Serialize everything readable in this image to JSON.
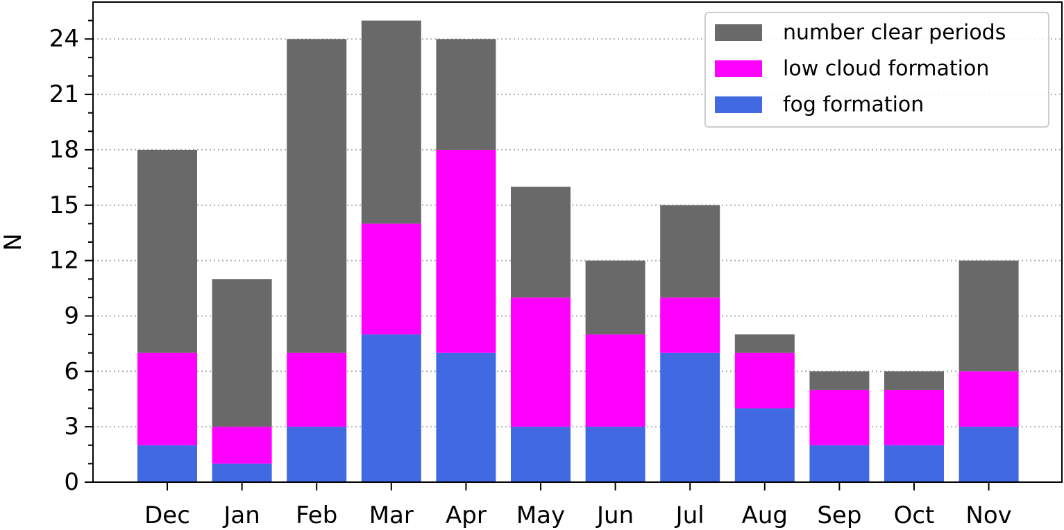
{
  "chart_data": {
    "type": "bar",
    "stacked": true,
    "categories": [
      "Dec",
      "Jan",
      "Feb",
      "Mar",
      "Apr",
      "May",
      "Jun",
      "Jul",
      "Aug",
      "Sep",
      "Oct",
      "Nov"
    ],
    "series": [
      {
        "name": "fog formation",
        "color": "#4169e1",
        "values": [
          2,
          1,
          3,
          8,
          7,
          3,
          3,
          7,
          4,
          2,
          2,
          3
        ]
      },
      {
        "name": "low cloud formation",
        "color": "#ff00ff",
        "values": [
          5,
          2,
          4,
          6,
          11,
          7,
          5,
          3,
          3,
          3,
          3,
          3
        ]
      },
      {
        "name": "number clear periods",
        "color": "#696969",
        "values": [
          11,
          8,
          17,
          11,
          6,
          6,
          4,
          5,
          1,
          1,
          1,
          6
        ]
      }
    ],
    "totals": [
      18,
      11,
      24,
      25,
      24,
      16,
      12,
      15,
      8,
      6,
      6,
      12
    ],
    "ylabel": "N",
    "xlabel": "",
    "title": "",
    "ylim": [
      0,
      26
    ],
    "yticks": [
      0,
      3,
      6,
      9,
      12,
      15,
      18,
      21,
      24
    ],
    "grid": "horizontal dotted",
    "legend_placement": "top-right",
    "legend_order": [
      "number clear periods",
      "low cloud formation",
      "fog formation"
    ]
  }
}
